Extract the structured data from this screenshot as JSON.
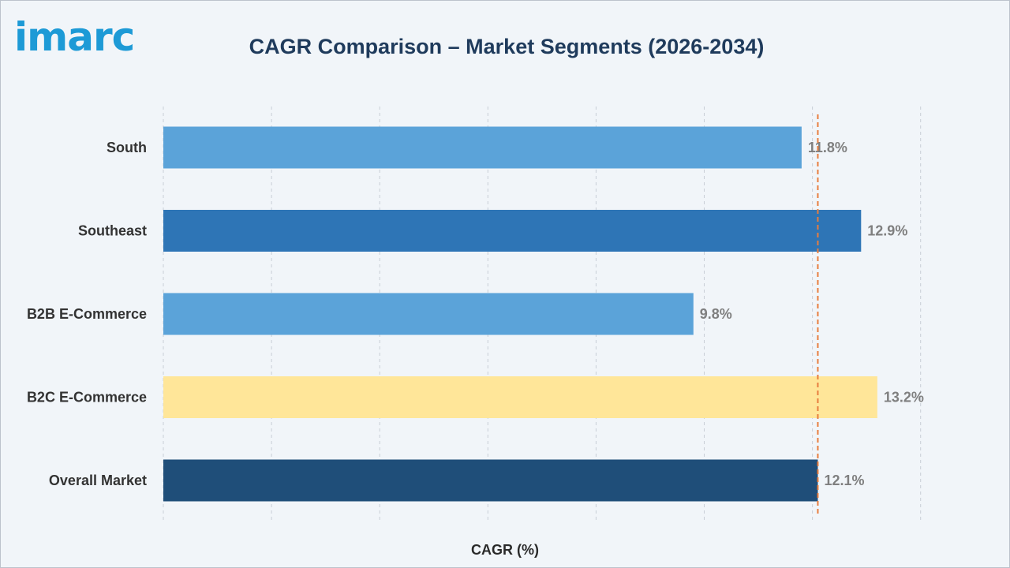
{
  "brand": {
    "logo_text": "imarc",
    "logo_color": "#1d9ad6"
  },
  "chart_data": {
    "type": "bar",
    "orientation": "horizontal",
    "title": "CAGR Comparison – Market Segments (2026-2034)",
    "xlabel": "CAGR (%)",
    "ylabel": "",
    "categories": [
      "South",
      "Southeast",
      "B2B E-Commerce",
      "B2C E-Commerce",
      "Overall Market"
    ],
    "values": [
      11.8,
      12.9,
      9.8,
      13.2,
      12.1
    ],
    "value_labels": [
      "11.8%",
      "12.9%",
      "9.8%",
      "13.2%",
      "12.1%"
    ],
    "bar_colors": [
      "#5ba3d9",
      "#2e75b6",
      "#5ba3d9",
      "#ffe699",
      "#1f4e79"
    ],
    "xlim": [
      0,
      14
    ],
    "grid": "vertical dashed",
    "reference_line": {
      "value": 12.1,
      "style": "dashed",
      "color": "#e87d3e"
    }
  }
}
